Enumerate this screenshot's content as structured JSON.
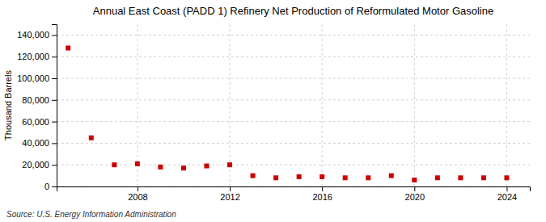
{
  "chart_data": {
    "type": "scatter",
    "title": "Annual East Coast (PADD 1) Refinery Net Production of Reformulated Motor Gasoline",
    "y_label": "Thousand Barrels",
    "annotation": "Source: U.S. Energy Information Administration",
    "x": [
      2005,
      2006,
      2007,
      2008,
      2009,
      2010,
      2011,
      2012,
      2013,
      2014,
      2015,
      2016,
      2017,
      2018,
      2019,
      2020,
      2021,
      2022,
      2023,
      2024
    ],
    "values": [
      128000,
      45000,
      20000,
      21000,
      18000,
      17000,
      19000,
      20000,
      10000,
      8000,
      9000,
      9000,
      8000,
      8000,
      10000,
      6000,
      8000,
      8000,
      8000,
      8000
    ],
    "color": "#cc0000",
    "marker": "square",
    "xlim": [
      2004.5,
      2025
    ],
    "xticks": [
      2008,
      2012,
      2016,
      2020,
      2024
    ],
    "ylim": [
      0,
      150000
    ],
    "yticks": [
      0,
      {
        "value": 20000,
        "label": "20,000"
      },
      {
        "value": 40000,
        "label": "40,000"
      },
      {
        "value": 60000,
        "label": "60,000"
      },
      {
        "value": 80000,
        "label": "80,000"
      },
      {
        "value": 100000,
        "label": "100,000"
      },
      {
        "value": 120000,
        "label": "120,000"
      },
      {
        "value": 140000,
        "label": "140,000"
      }
    ],
    "grid": true
  }
}
